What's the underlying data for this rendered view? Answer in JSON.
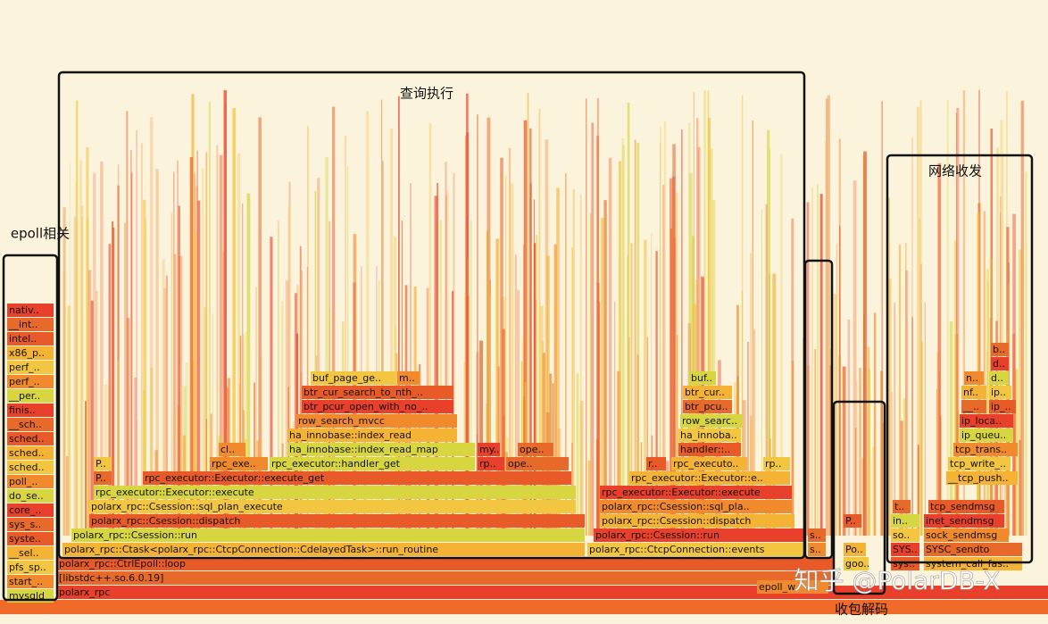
{
  "annotations": {
    "query": "查询执行",
    "epoll": "epoll相关",
    "network": "网络收发",
    "decode": "收包解码"
  },
  "watermark": "知乎 @PolarDB-X",
  "frames": [
    "nativ..",
    "__int..",
    "intel..",
    "x86_p..",
    "perf_..",
    "perf_..",
    "__per..",
    "finis..",
    "__sch..",
    "sched..",
    "sched..",
    "sched..",
    "poll_..",
    "do_se..",
    "core_..",
    "sys_s..",
    "syste..",
    "__sel..",
    "pfs_sp..",
    "start_..",
    "mysqld",
    "polarx_rpc",
    "[libstdc++.so.6.0.19]",
    "polarx_rpc::CtrlEpoll::loop",
    "polarx_rpc::Ctask<polarx_rpc::CtcpConnection::CdelayedTask>::run_routine",
    "polarx_rpc::CtcpConnection::events",
    "s..",
    "polarx_rpc::Csession::run",
    "polarx_rpc::Csession::run",
    "s..",
    "polarx_rpc::Csession::dispatch",
    "polarx_rpc::Csession::dispatch",
    "polarx_rpc::Csession::sql_plan_execute",
    "polarx_rpc::Csession::sql_pla..",
    "rpc_executor::Executor::execute",
    "rpc_executor::Executor::execute",
    "P..",
    "rpc_executor::Executor::execute_get",
    "rpc_executor::Executor::e..",
    "P..",
    "rpc_exe..",
    "rpc_executor::handler_get",
    "rp..",
    "ope..",
    "r..",
    "rpc_executo..",
    "rp..",
    "cl..",
    "ha_innobase::index_read_map",
    "my..",
    "ope..",
    "handler::..",
    "ha_innobase::index_read",
    "ha_innoba..",
    "row_search_mvcc",
    "row_searc..",
    "btr_pcur_open_with_no_..",
    "btr_pcu..",
    "btr_cur_search_to_nth_..",
    "btr_cur..",
    "buf_page_ge..",
    "m..",
    "buf..",
    "SYS..",
    "SYSC_sendto",
    "sys..",
    "system_call_fas..",
    "so..",
    "sock_sendmsg",
    "in..",
    "inet_sendmsg",
    "t..",
    "tcp_sendmsg",
    "__tcp_push..",
    "tcp_write_..",
    "tcp_trans..",
    "ip_queu..",
    "ip_loca..",
    "__..",
    "ip_..",
    "nf..",
    "ip..",
    "n..",
    "d..",
    "d..",
    "b..",
    "P..",
    "Po..",
    "goo..",
    "epoll_w"
  ]
}
